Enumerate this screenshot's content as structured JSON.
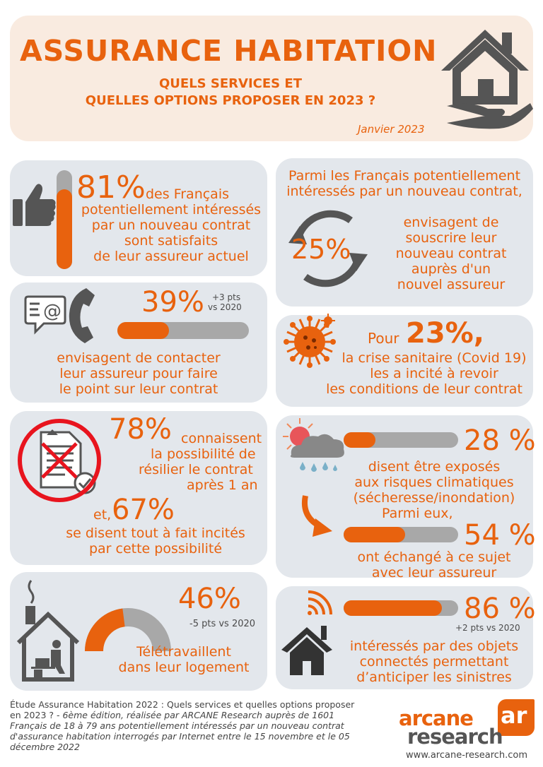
{
  "header": {
    "title": "ASSURANCE HABITATION",
    "subtitle_line1": "QUELS SERVICES ET",
    "subtitle_line2": "QUELLES OPTIONS PROPOSER EN 2023 ?",
    "date": "Janvier 2023"
  },
  "stat_satisfied": {
    "value": "81%",
    "line1": "des Français",
    "line2": "potentiellement intéressés",
    "line3": "par un nouveau contrat",
    "line4": "sont satisfaits",
    "line5": "de leur assureur actuel",
    "fraction": 0.81
  },
  "stat_new_insurer": {
    "intro1": "Parmi les Français potentiellement",
    "intro2": "intéressés par un nouveau contrat,",
    "value": "25%",
    "line1": "envisagent de",
    "line2": "souscrire leur",
    "line3": "nouveau contrat",
    "line4": "auprès d'un",
    "line5": "nouvel assureur"
  },
  "stat_contact": {
    "value": "39%",
    "delta1": "+3 pts",
    "delta2": "vs 2020",
    "line1": "envisagent de contacter",
    "line2": "leur assureur pour faire",
    "line3": "le point sur leur contrat",
    "fraction": 0.39
  },
  "stat_covid": {
    "prefix": "Pour",
    "value": "23%,",
    "line1": "la crise sanitaire (Covid 19)",
    "line2": "les a incité à revoir",
    "line3": "les conditions de leur contrat"
  },
  "stat_cancel": {
    "value": "78%",
    "line1": "connaissent",
    "line2": "la possibilité de",
    "line3": "résilier le contrat",
    "line4": "après 1 an",
    "prefix2": "et,",
    "value2": "67%",
    "line5": "se disent tout à fait incités",
    "line6": "par cette possibilité"
  },
  "stat_climate": {
    "value": "28 %",
    "fraction": 0.28,
    "line1": "disent être exposés",
    "line2": "aux risques climatiques",
    "line3": "(sécheresse/inondation)",
    "intro2": "Parmi eux,",
    "value2": "54 %",
    "fraction2": 0.54,
    "line4": "ont échangé à ce sujet",
    "line5": "avec leur assureur"
  },
  "stat_remote": {
    "value": "46%",
    "fraction": 0.46,
    "delta": "-5 pts vs 2020",
    "line1": "Télétravaillent",
    "line2": "dans leur logement"
  },
  "stat_connected": {
    "value": "86 %",
    "fraction": 0.86,
    "delta": "+2 pts vs 2020",
    "line1": "intéressés par des objets",
    "line2": "connectés permettant",
    "line3": "d’anticiper les sinistres"
  },
  "footer": {
    "line1": "Étude Assurance Habitation 2022 : Quels services et quelles options proposer",
    "line2a": "en 2023 ? -",
    "line2b": "6ème édition, réalisée par ARCANE Research auprès de 1601",
    "line3": "Français de 18 à 79 ans potentiellement intéressés par un nouveau contrat",
    "line4": "d'assurance habitation interrogés par Internet entre le 15 novembre et le 05",
    "line5": "décembre 2022",
    "logo_word1": "arcane",
    "logo_word2": "research",
    "logo_mark": "ar",
    "url": "www.arcane-research.com"
  },
  "colors": {
    "accent": "#e8620e",
    "card": "#e3e7ec",
    "header": "#f9ebe0",
    "icon": "#555555",
    "bar_bg": "#a8a8a8"
  }
}
